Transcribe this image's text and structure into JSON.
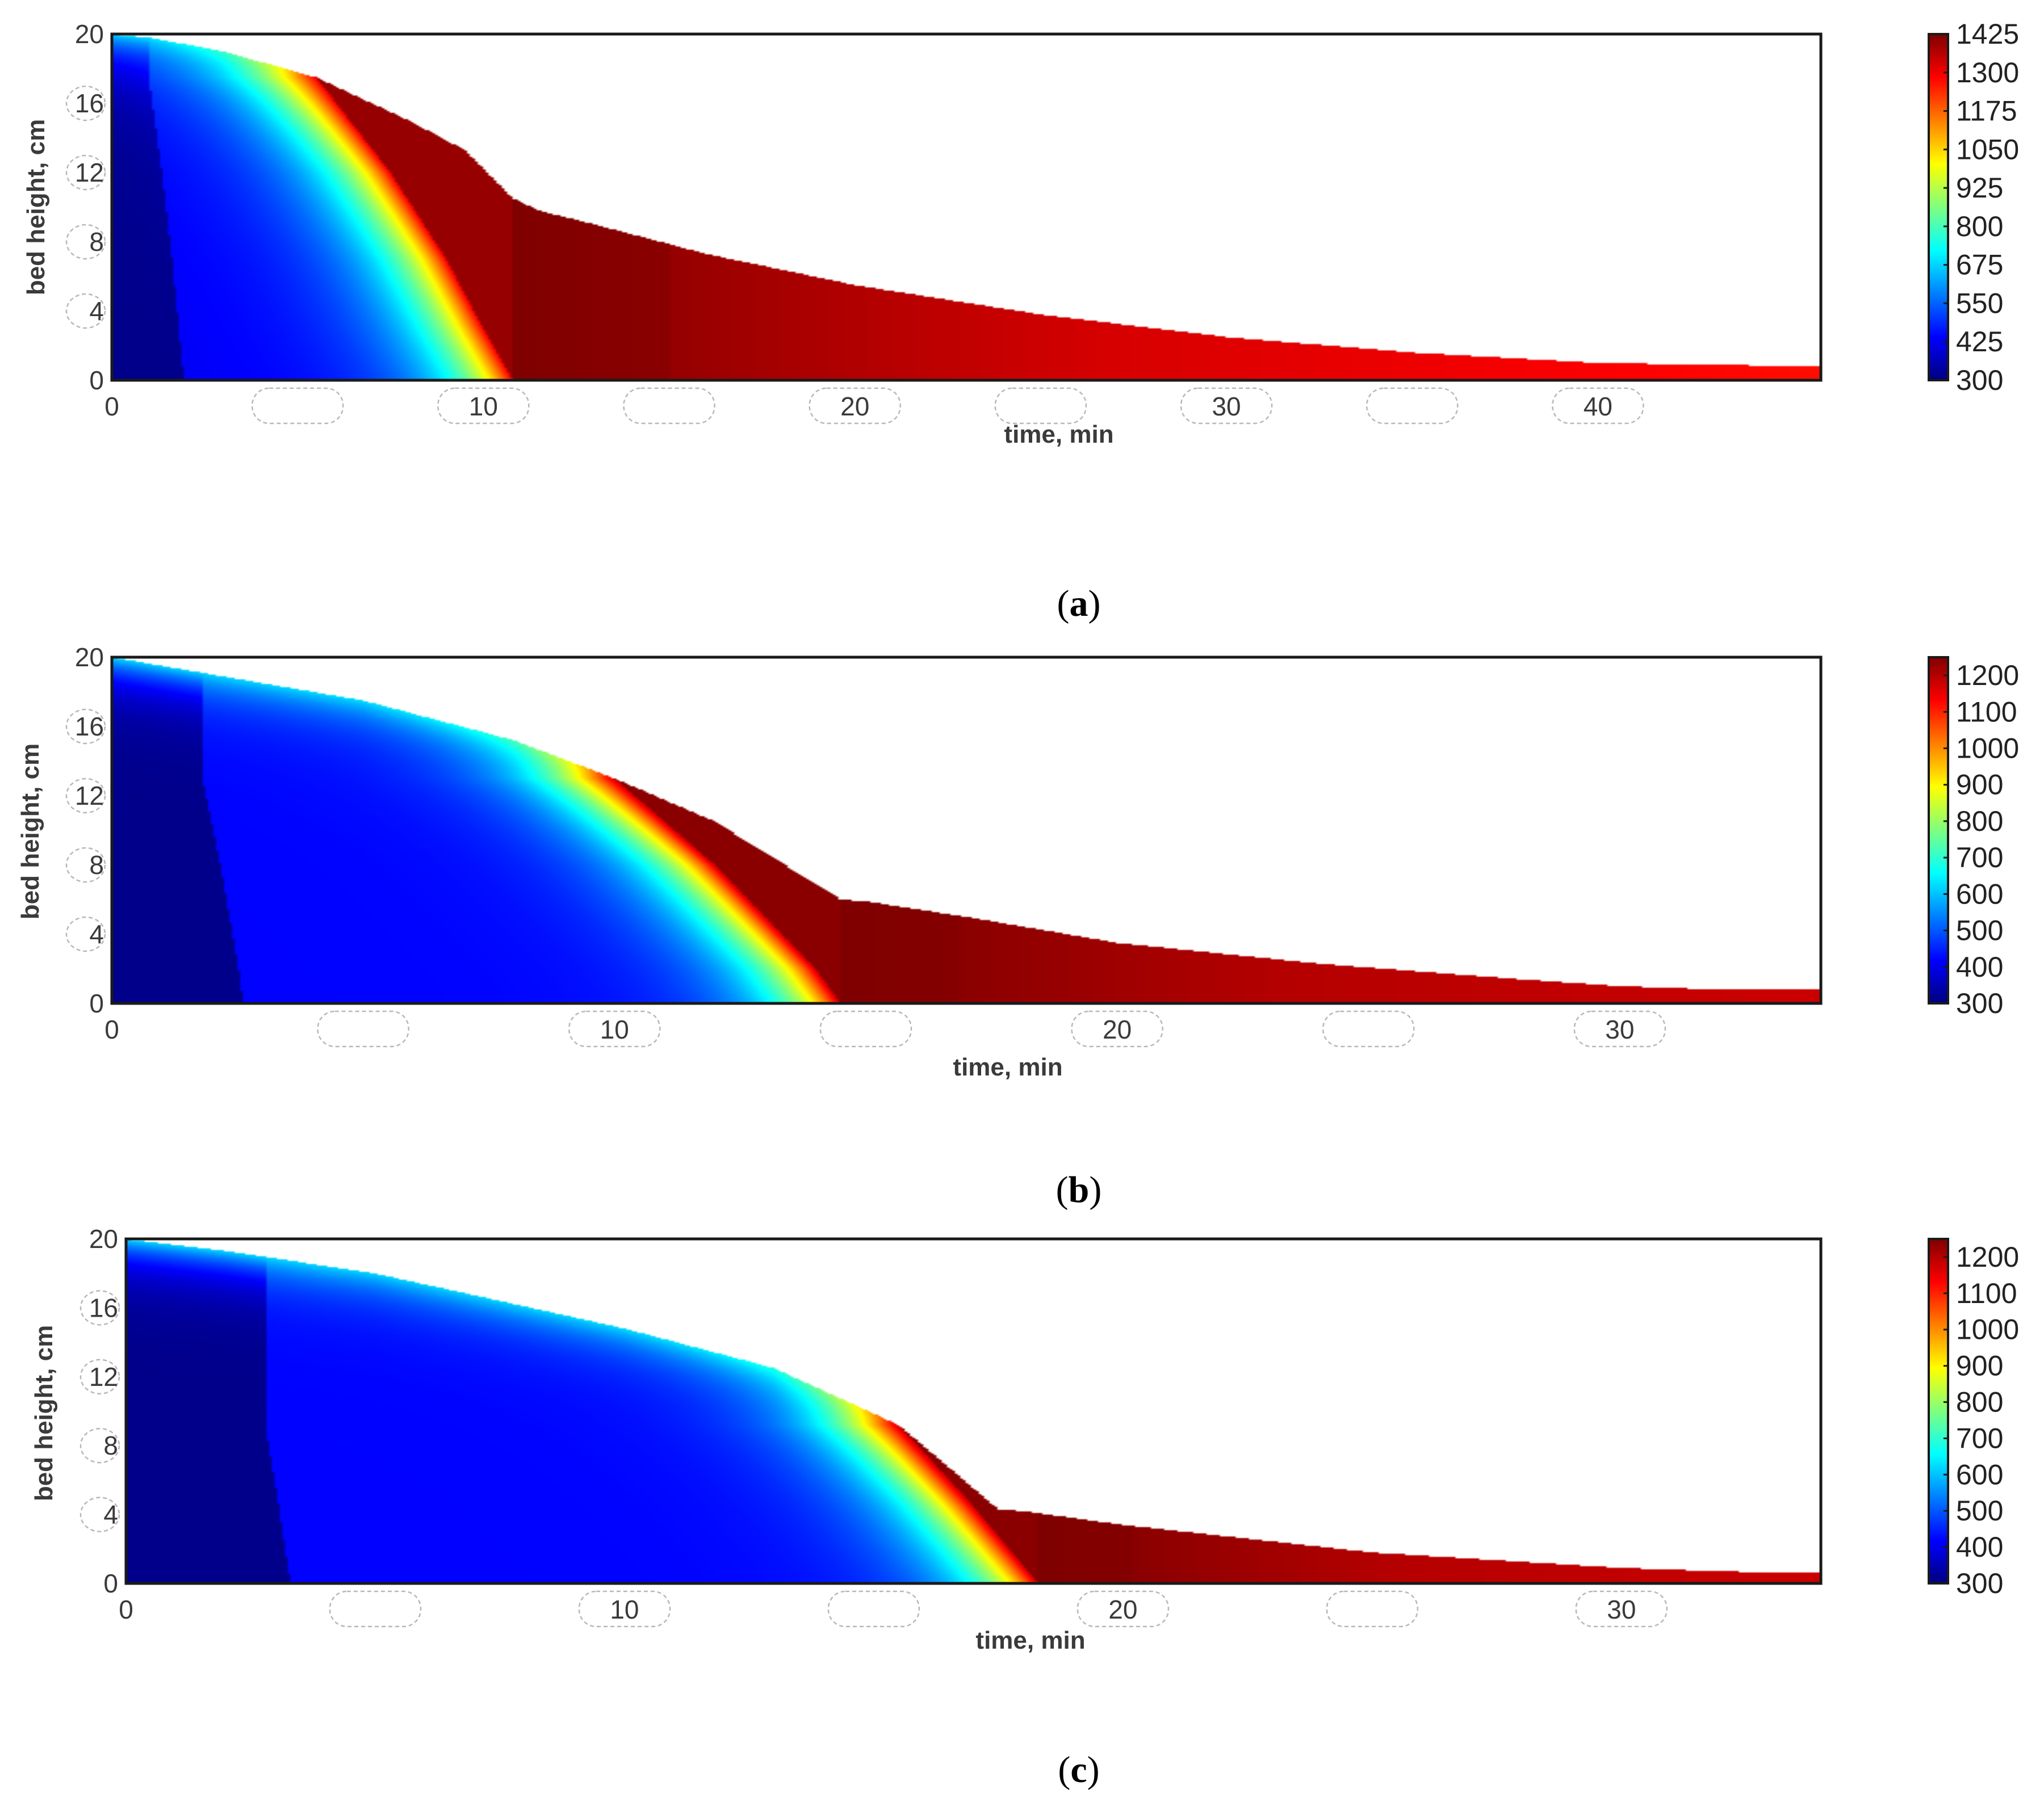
{
  "colormap": [
    "#00007f",
    "#0000ff",
    "#007fff",
    "#00ffff",
    "#7fff7f",
    "#ffff00",
    "#ff7f00",
    "#ff0000",
    "#7f0000"
  ],
  "chart_data": [
    {
      "type": "heatmap",
      "caption": "a",
      "xlabel": "time,  min",
      "ylabel": "bed height, cm",
      "xlim": [
        0,
        46
      ],
      "ylim": [
        0,
        20
      ],
      "xticks": [
        0,
        10,
        20,
        30,
        40
      ],
      "yticks": [
        0,
        4,
        8,
        12,
        16,
        20
      ],
      "colorbar": {
        "min": 300,
        "max": 1425,
        "ticks": [
          300,
          425,
          550,
          675,
          800,
          925,
          1050,
          1175,
          1300,
          1425
        ]
      },
      "bed_surface": {
        "t": [
          0,
          1,
          3,
          5.5,
          8,
          9.5,
          10.8,
          11.5,
          13,
          16,
          20,
          25,
          30,
          35,
          40,
          46
        ],
        "h": [
          20,
          19.8,
          19,
          17.5,
          15,
          13.3,
          10.5,
          9.8,
          9,
          7.3,
          5.5,
          3.8,
          2.5,
          1.6,
          1,
          0.8
        ]
      },
      "ignition_front": {
        "t": [
          5.5,
          7.5,
          9,
          10,
          10.8
        ],
        "h": [
          17.5,
          12,
          7,
          3,
          0
        ]
      },
      "temperature_field": {
        "preheat_zone": {
          "near_surface": 650,
          "mid_bed": 430,
          "bottom_cold": 310
        },
        "flame_front_peak": 1300,
        "post_front": {
          "peak": 1425,
          "early": 1400,
          "middle": 1330,
          "late": 1270
        }
      }
    },
    {
      "type": "heatmap",
      "caption": "b",
      "xlabel": "time,  min",
      "ylabel": "bed height, cm",
      "xlim": [
        0,
        34
      ],
      "ylim": [
        0,
        20
      ],
      "xticks": [
        0,
        10,
        20,
        30
      ],
      "yticks": [
        0,
        4,
        8,
        12,
        16,
        20
      ],
      "colorbar": {
        "min": 300,
        "max": 1250,
        "ticks": [
          300,
          400,
          500,
          600,
          700,
          800,
          900,
          1000,
          1100,
          1200
        ]
      },
      "bed_surface": {
        "t": [
          0,
          2,
          5,
          8,
          10,
          12,
          14.5,
          15,
          17,
          20,
          24,
          28,
          30,
          32,
          34
        ],
        "h": [
          20,
          19,
          17.5,
          15.2,
          13,
          10.5,
          6,
          5.9,
          5,
          3.5,
          2.3,
          1.4,
          1,
          0.8,
          0.8
        ]
      },
      "ignition_front": {
        "t": [
          10,
          12,
          14,
          14.5
        ],
        "h": [
          13,
          8,
          2,
          0
        ]
      },
      "temperature_field": {
        "preheat_zone": {
          "near_surface": 620,
          "mid_bed": 420,
          "bottom_cold": 310
        },
        "flame_front_peak": 1180,
        "post_front": {
          "peak": 1250,
          "early": 1240,
          "middle": 1200,
          "late": 1180
        }
      }
    },
    {
      "type": "heatmap",
      "caption": "c",
      "xlabel": "time,  min",
      "ylabel": "bed height, cm",
      "xlim": [
        0,
        34
      ],
      "ylim": [
        0,
        20
      ],
      "xticks": [
        0,
        10,
        20,
        30
      ],
      "yticks": [
        0,
        4,
        8,
        12,
        16,
        20
      ],
      "colorbar": {
        "min": 300,
        "max": 1250,
        "ticks": [
          300,
          400,
          500,
          600,
          700,
          800,
          900,
          1000,
          1100,
          1200
        ]
      },
      "bed_surface": {
        "t": [
          0,
          2,
          5,
          10,
          13,
          15.5,
          17.5,
          18,
          20,
          25,
          30,
          32,
          34
        ],
        "h": [
          20,
          19.3,
          18,
          14.8,
          12.5,
          9.2,
          4.3,
          4.2,
          3.4,
          1.8,
          0.9,
          0.7,
          0.6
        ]
      },
      "ignition_front": {
        "t": [
          15.5,
          17,
          18.3
        ],
        "h": [
          9.2,
          4.5,
          0
        ]
      },
      "temperature_field": {
        "preheat_zone": {
          "near_surface": 620,
          "mid_bed": 420,
          "bottom_cold": 310
        },
        "flame_front_peak": 1180,
        "post_front": {
          "peak": 1250,
          "early": 1240,
          "middle": 1200,
          "late": 1180
        }
      }
    }
  ]
}
